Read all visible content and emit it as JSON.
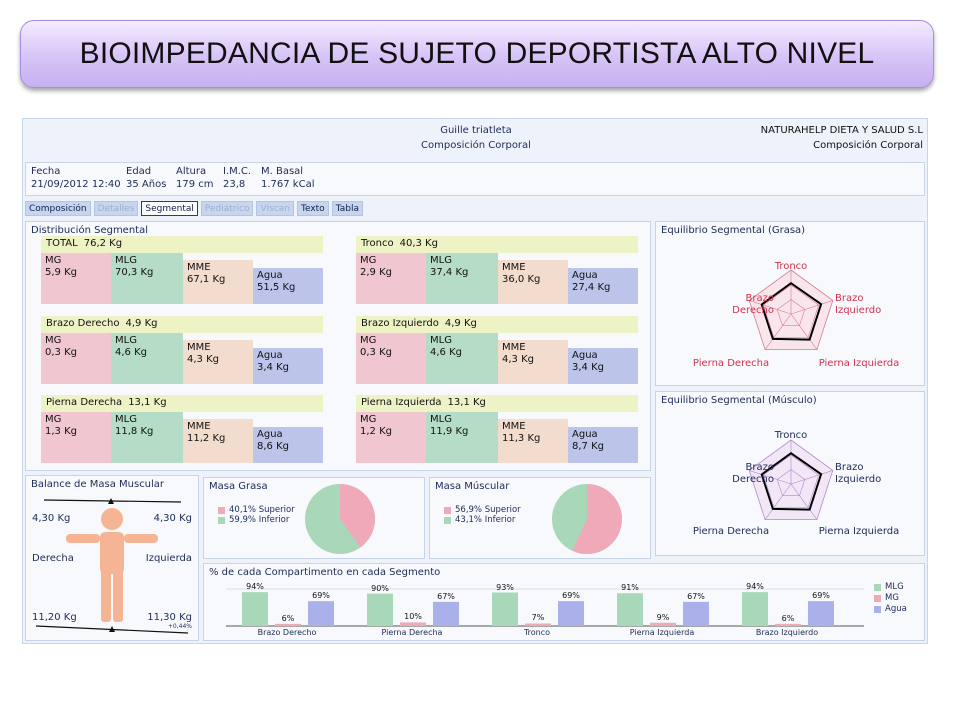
{
  "slide": {
    "title": "BIOIMPEDANCIA DE SUJETO DEPORTISTA ALTO NIVEL"
  },
  "header": {
    "name": "Guille triatleta",
    "subtitle": "Composición Corporal",
    "company": "NATURAHELP DIETA Y SALUD S.L",
    "company_sub": "Composición Corporal"
  },
  "info": [
    {
      "label": "Fecha",
      "value": "21/09/2012 12:40"
    },
    {
      "label": "Edad",
      "value": "35 Años"
    },
    {
      "label": "Altura",
      "value": "179 cm"
    },
    {
      "label": "I.M.C.",
      "value": "23,8"
    },
    {
      "label": "M. Basal",
      "value": "1.767 kCal"
    }
  ],
  "tabs": [
    {
      "label": "Composición",
      "state": "normal"
    },
    {
      "label": "Detalles",
      "state": "disabled"
    },
    {
      "label": "Segmental",
      "state": "active"
    },
    {
      "label": "Pediátrico",
      "state": "disabled"
    },
    {
      "label": "Víscan",
      "state": "disabled"
    },
    {
      "label": "Texto",
      "state": "normal"
    },
    {
      "label": "Tabla",
      "state": "normal"
    }
  ],
  "distribution": {
    "title": "Distribución Segmental",
    "segments": [
      {
        "name": "TOTAL",
        "total": "76,2 Kg",
        "mg_label": "MG",
        "mg": "5,9 Kg",
        "mlg_label": "MLG",
        "mlg": "70,3 Kg",
        "mme_label": "MME",
        "mme": "67,1 Kg",
        "agua_label": "Agua",
        "agua": "51,5 Kg"
      },
      {
        "name": "Tronco",
        "total": "40,3 Kg",
        "mg_label": "MG",
        "mg": "2,9 Kg",
        "mlg_label": "MLG",
        "mlg": "37,4 Kg",
        "mme_label": "MME",
        "mme": "36,0 Kg",
        "agua_label": "Agua",
        "agua": "27,4 Kg"
      },
      {
        "name": "Brazo Derecho",
        "total": "4,9 Kg",
        "mg_label": "MG",
        "mg": "0,3 Kg",
        "mlg_label": "MLG",
        "mlg": "4,6 Kg",
        "mme_label": "MME",
        "mme": "4,3 Kg",
        "agua_label": "Agua",
        "agua": "3,4 Kg"
      },
      {
        "name": "Brazo Izquierdo",
        "total": "4,9 Kg",
        "mg_label": "MG",
        "mg": "0,3 Kg",
        "mlg_label": "MLG",
        "mlg": "4,6 Kg",
        "mme_label": "MME",
        "mme": "4,3 Kg",
        "agua_label": "Agua",
        "agua": "3,4 Kg"
      },
      {
        "name": "Pierna Derecha",
        "total": "13,1 Kg",
        "mg_label": "MG",
        "mg": "1,3 Kg",
        "mlg_label": "MLG",
        "mlg": "11,8 Kg",
        "mme_label": "MME",
        "mme": "11,2 Kg",
        "agua_label": "Agua",
        "agua": "8,6 Kg"
      },
      {
        "name": "Pierna Izquierda",
        "total": "13,1 Kg",
        "mg_label": "MG",
        "mg": "1,2 Kg",
        "mlg_label": "MLG",
        "mlg": "11,9 Kg",
        "mme_label": "MME",
        "mme": "11,3 Kg",
        "agua_label": "Agua",
        "agua": "8,7 Kg"
      }
    ]
  },
  "radar_grasa": {
    "title": "Equilibrio Segmental (Grasa)",
    "labels": {
      "top": "Tronco",
      "left": "Brazo\nDerecho",
      "right": "Brazo\nIzquierdo",
      "bottom_left": "Pierna Derecha",
      "bottom_right": "Pierna Izquierda"
    },
    "label_color": "#d2334f"
  },
  "radar_musculo": {
    "title": "Equilibrio Segmental (Músculo)",
    "labels": {
      "top": "Tronco",
      "left": "Brazo\nDerecho",
      "right": "Brazo\nIzquierdo",
      "bottom_left": "Pierna Derecha",
      "bottom_right": "Pierna Izquierda"
    },
    "label_color": "#1d2b55"
  },
  "balance": {
    "title": "Balance de Masa Muscular",
    "upper_left": "4,30 Kg",
    "upper_right": "4,30 Kg",
    "side_left": "Derecha",
    "side_right": "Izquierda",
    "lower_left": "11,20 Kg",
    "lower_right": "11,30 Kg",
    "diff": "+0,44%"
  },
  "masa_grasa": {
    "title": "Masa Grasa",
    "superior_label": "40,1% Superior",
    "inferior_label": "59,9% Inferior",
    "superior_pct": 40.1,
    "inferior_pct": 59.9
  },
  "masa_muscular": {
    "title": "Masa Múscular",
    "superior_label": "56,9% Superior",
    "inferior_label": "43,1% Inferior",
    "superior_pct": 56.9,
    "inferior_pct": 43.1
  },
  "colors": {
    "pink": "#f0a9b8",
    "green": "#a8d8b8",
    "blue": "#a9b0ea"
  },
  "chart_data": {
    "type": "bar",
    "title": "% de cada Compartimento en cada Segmento",
    "categories": [
      "Brazo Derecho",
      "Pierna Derecha",
      "Tronco",
      "Pierna Izquierda",
      "Brazo Izquierdo"
    ],
    "series": [
      {
        "name": "MLG",
        "values": [
          94,
          90,
          93,
          91,
          94
        ],
        "labels": [
          "94%",
          "90%",
          "93%",
          "91%",
          "94%"
        ]
      },
      {
        "name": "MG",
        "values": [
          6,
          10,
          7,
          9,
          6
        ],
        "labels": [
          "6%",
          "10%",
          "7%",
          "9%",
          "6%"
        ]
      },
      {
        "name": "Agua",
        "values": [
          69,
          67,
          69,
          67,
          69
        ],
        "labels": [
          "69%",
          "67%",
          "69%",
          "67%",
          "69%"
        ]
      }
    ],
    "ylim": [
      0,
      100
    ],
    "legend": "right"
  }
}
